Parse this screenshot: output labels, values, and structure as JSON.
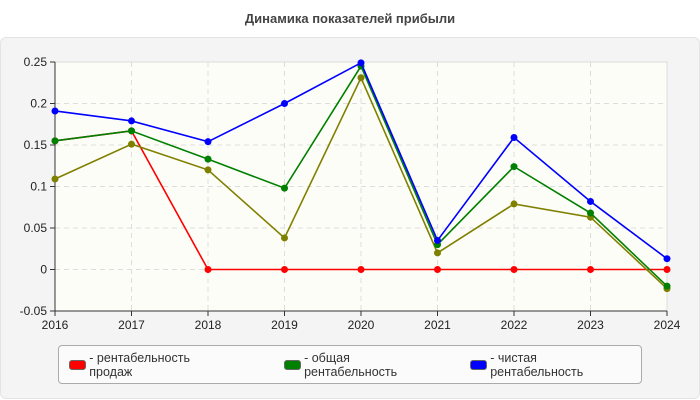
{
  "chart_data": {
    "type": "line",
    "title": "Динамика показателей прибыли",
    "x": [
      "2016",
      "2017",
      "2018",
      "2019",
      "2020",
      "2021",
      "2022",
      "2023",
      "2024"
    ],
    "ylim": [
      -0.05,
      0.25
    ],
    "yticks": [
      "0.25",
      "0.2",
      "0.15",
      "0.1",
      "0.05",
      "0",
      "-0.05"
    ],
    "grid": true,
    "legend_position": "bottom",
    "series": [
      {
        "name": "- рентабельность продаж",
        "color": "#ff0000",
        "values": [
          0.155,
          0.167,
          0,
          0,
          0,
          0,
          0,
          0,
          0
        ]
      },
      {
        "color": "#808000",
        "values": [
          0.109,
          0.151,
          0.12,
          0.038,
          0.231,
          0.02,
          0.079,
          0.063,
          -0.023
        ]
      },
      {
        "name": "- общая рентабельность",
        "color": "#008000",
        "values": [
          0.155,
          0.167,
          0.133,
          0.098,
          0.245,
          0.03,
          0.124,
          0.068,
          -0.02
        ]
      },
      {
        "name": "- чистая рентабельность",
        "color": "#0000ff",
        "values": [
          0.191,
          0.179,
          0.154,
          0.2,
          0.249,
          0.035,
          0.159,
          0.082,
          0.013
        ]
      }
    ]
  }
}
